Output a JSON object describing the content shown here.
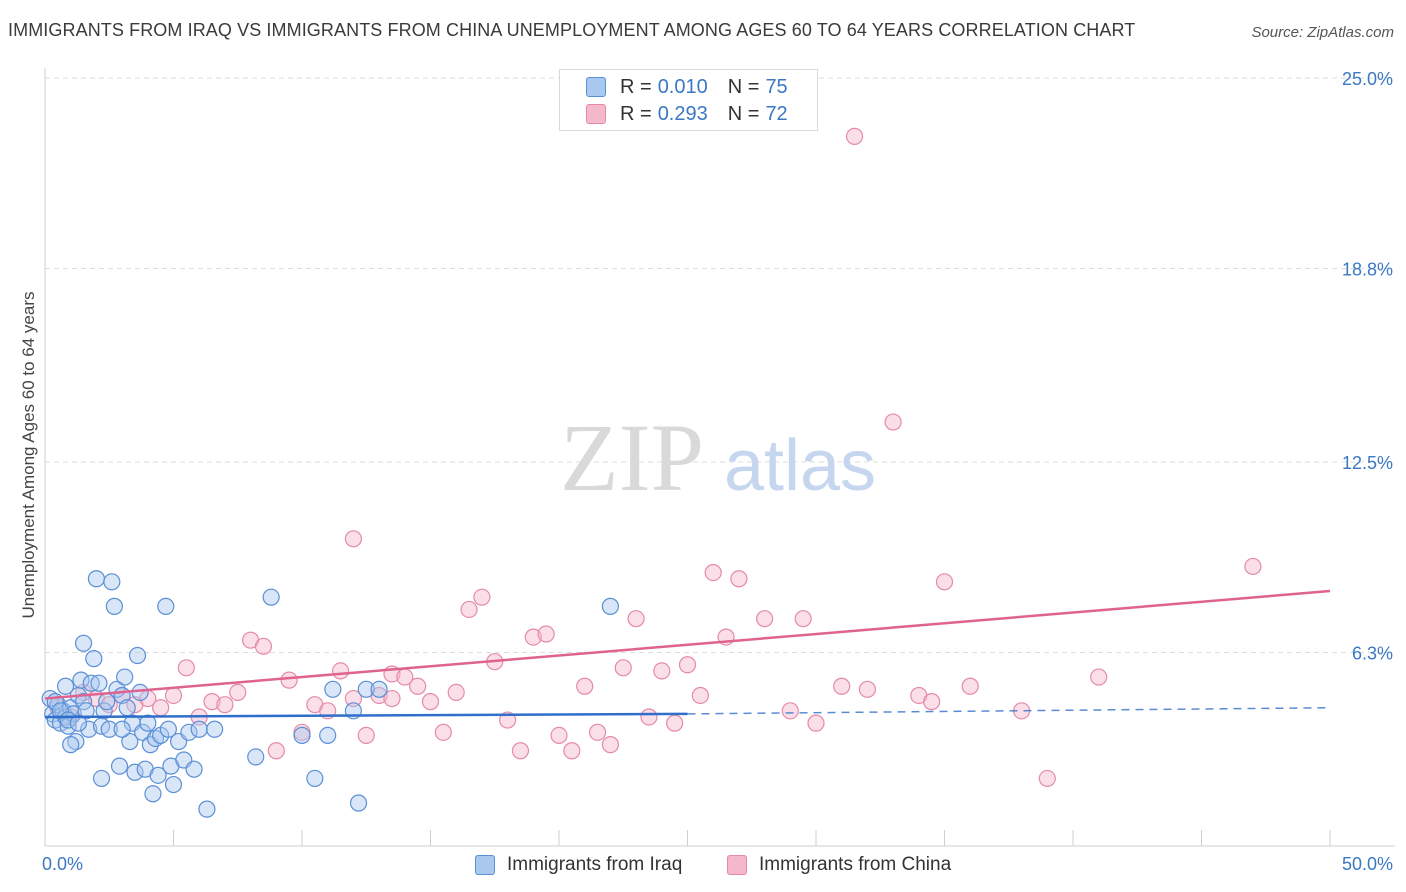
{
  "header": {
    "title": "IMMIGRANTS FROM IRAQ VS IMMIGRANTS FROM CHINA UNEMPLOYMENT AMONG AGES 60 TO 64 YEARS CORRELATION CHART",
    "source": "Source: ZipAtlas.com"
  },
  "watermark": {
    "part1": "ZIP",
    "part2": "atlas"
  },
  "legend": {
    "rows": [
      {
        "r_label": "R =",
        "r_value": "0.010",
        "n_label": "N =",
        "n_value": "75"
      },
      {
        "r_label": "R =",
        "r_value": "0.293",
        "n_label": "N =",
        "n_value": "72"
      }
    ]
  },
  "bottom_legend": {
    "iraq": "Immigrants from Iraq",
    "china": "Immigrants from China"
  },
  "colors": {
    "iraq_fill": "#a9c8f0",
    "iraq_stroke": "#5b8fd6",
    "iraq_line": "#2f6fc9",
    "china_fill": "#f5b8cb",
    "china_stroke": "#e58aa8",
    "china_line": "#e0628e",
    "tick_label": "#3b78c3",
    "grid": "#dddddd"
  },
  "chart_data": {
    "type": "scatter",
    "xlabel": "",
    "ylabel": "Unemployment Among Ages 60 to 64 years",
    "xlim": [
      0,
      50
    ],
    "ylim": [
      0,
      25
    ],
    "x_tick_labels": [
      "0.0%",
      "50.0%"
    ],
    "y_ticks": [
      6.3,
      12.5,
      18.8,
      25.0
    ],
    "y_tick_labels": [
      "6.3%",
      "12.5%",
      "18.8%",
      "25.0%"
    ],
    "grid": "horizontal dashed",
    "legend_position": "top-center",
    "series": [
      {
        "name": "Immigrants from Iraq",
        "trend": {
          "x": [
            0,
            25
          ],
          "y": [
            4.2,
            4.3
          ],
          "dashed_to": [
            50,
            4.5
          ]
        },
        "points": [
          [
            0.2,
            4.8
          ],
          [
            0.3,
            4.3
          ],
          [
            0.4,
            4.1
          ],
          [
            0.5,
            4.6
          ],
          [
            0.6,
            4.0
          ],
          [
            0.7,
            4.4
          ],
          [
            0.8,
            4.2
          ],
          [
            0.9,
            3.9
          ],
          [
            1.0,
            4.5
          ],
          [
            1.1,
            4.3
          ],
          [
            1.2,
            3.4
          ],
          [
            1.3,
            4.9
          ],
          [
            1.4,
            5.4
          ],
          [
            1.5,
            4.7
          ],
          [
            1.6,
            4.4
          ],
          [
            1.7,
            3.8
          ],
          [
            1.8,
            5.3
          ],
          [
            1.9,
            6.1
          ],
          [
            2.0,
            8.7
          ],
          [
            2.1,
            5.3
          ],
          [
            2.2,
            3.9
          ],
          [
            2.3,
            4.4
          ],
          [
            2.4,
            4.7
          ],
          [
            2.5,
            3.8
          ],
          [
            2.6,
            8.6
          ],
          [
            2.7,
            7.8
          ],
          [
            2.8,
            5.1
          ],
          [
            2.9,
            2.6
          ],
          [
            3.0,
            4.9
          ],
          [
            3.1,
            5.5
          ],
          [
            3.2,
            4.5
          ],
          [
            3.3,
            3.4
          ],
          [
            3.4,
            4.0
          ],
          [
            3.5,
            2.4
          ],
          [
            3.6,
            6.2
          ],
          [
            3.7,
            5.0
          ],
          [
            3.8,
            3.7
          ],
          [
            3.9,
            2.5
          ],
          [
            4.0,
            4.0
          ],
          [
            4.1,
            3.3
          ],
          [
            4.2,
            1.7
          ],
          [
            4.3,
            3.5
          ],
          [
            4.4,
            2.3
          ],
          [
            4.5,
            3.6
          ],
          [
            4.7,
            7.8
          ],
          [
            4.8,
            3.8
          ],
          [
            4.9,
            2.6
          ],
          [
            5.0,
            2.0
          ],
          [
            5.2,
            3.4
          ],
          [
            5.4,
            2.8
          ],
          [
            5.6,
            3.7
          ],
          [
            5.8,
            2.5
          ],
          [
            6.0,
            3.8
          ],
          [
            6.3,
            1.2
          ],
          [
            6.6,
            3.8
          ],
          [
            8.2,
            2.9
          ],
          [
            8.8,
            8.1
          ],
          [
            10.0,
            3.6
          ],
          [
            10.5,
            2.2
          ],
          [
            11.0,
            3.6
          ],
          [
            11.2,
            5.1
          ],
          [
            12.0,
            4.4
          ],
          [
            12.2,
            1.4
          ],
          [
            12.5,
            5.1
          ],
          [
            13.0,
            5.1
          ],
          [
            22.0,
            7.8
          ],
          [
            1.5,
            6.6
          ],
          [
            0.8,
            5.2
          ],
          [
            1.0,
            3.3
          ],
          [
            2.2,
            2.2
          ],
          [
            0.4,
            4.7
          ],
          [
            0.6,
            4.4
          ],
          [
            0.9,
            4.1
          ],
          [
            1.3,
            4.0
          ],
          [
            3.0,
            3.8
          ]
        ]
      },
      {
        "name": "Immigrants from China",
        "trend": {
          "x": [
            0,
            50
          ],
          "y": [
            4.8,
            8.3
          ]
        },
        "points": [
          [
            0.5,
            4.5
          ],
          [
            1.0,
            4.2
          ],
          [
            1.5,
            5.0
          ],
          [
            2.0,
            4.8
          ],
          [
            2.5,
            4.6
          ],
          [
            3.0,
            4.9
          ],
          [
            3.5,
            4.6
          ],
          [
            4.0,
            4.8
          ],
          [
            4.5,
            4.5
          ],
          [
            5.0,
            4.9
          ],
          [
            5.5,
            5.8
          ],
          [
            6.0,
            4.2
          ],
          [
            6.5,
            4.7
          ],
          [
            7.0,
            4.6
          ],
          [
            7.5,
            5.0
          ],
          [
            8.0,
            6.7
          ],
          [
            8.5,
            6.5
          ],
          [
            9.0,
            3.1
          ],
          [
            9.5,
            5.4
          ],
          [
            10.0,
            3.7
          ],
          [
            10.5,
            4.6
          ],
          [
            11.0,
            4.4
          ],
          [
            11.5,
            5.7
          ],
          [
            12.0,
            4.8
          ],
          [
            12.5,
            3.6
          ],
          [
            13.0,
            4.9
          ],
          [
            13.5,
            5.6
          ],
          [
            14.0,
            5.5
          ],
          [
            12.0,
            10.0
          ],
          [
            14.5,
            5.2
          ],
          [
            15.0,
            4.7
          ],
          [
            15.5,
            3.7
          ],
          [
            16.0,
            5.0
          ],
          [
            16.5,
            7.7
          ],
          [
            17.0,
            8.1
          ],
          [
            17.5,
            6.0
          ],
          [
            18.0,
            4.1
          ],
          [
            18.5,
            3.1
          ],
          [
            19.0,
            6.8
          ],
          [
            19.5,
            6.9
          ],
          [
            20.0,
            3.6
          ],
          [
            20.5,
            3.1
          ],
          [
            21.0,
            5.2
          ],
          [
            21.5,
            3.7
          ],
          [
            22.0,
            3.3
          ],
          [
            22.5,
            5.8
          ],
          [
            23.0,
            7.4
          ],
          [
            23.5,
            4.2
          ],
          [
            24.0,
            5.7
          ],
          [
            24.5,
            4.0
          ],
          [
            25.0,
            5.9
          ],
          [
            25.5,
            4.9
          ],
          [
            26.0,
            8.9
          ],
          [
            26.5,
            6.8
          ],
          [
            27.0,
            8.7
          ],
          [
            28.0,
            7.4
          ],
          [
            29.0,
            4.4
          ],
          [
            29.5,
            7.4
          ],
          [
            30.0,
            4.0
          ],
          [
            31.0,
            5.2
          ],
          [
            32.0,
            5.1
          ],
          [
            33.0,
            13.8
          ],
          [
            34.0,
            4.9
          ],
          [
            34.5,
            4.7
          ],
          [
            35.0,
            8.6
          ],
          [
            36.0,
            5.2
          ],
          [
            38.0,
            4.4
          ],
          [
            39.0,
            2.2
          ],
          [
            41.0,
            5.5
          ],
          [
            47.0,
            9.1
          ],
          [
            31.5,
            23.1
          ],
          [
            13.5,
            4.8
          ]
        ]
      }
    ]
  }
}
